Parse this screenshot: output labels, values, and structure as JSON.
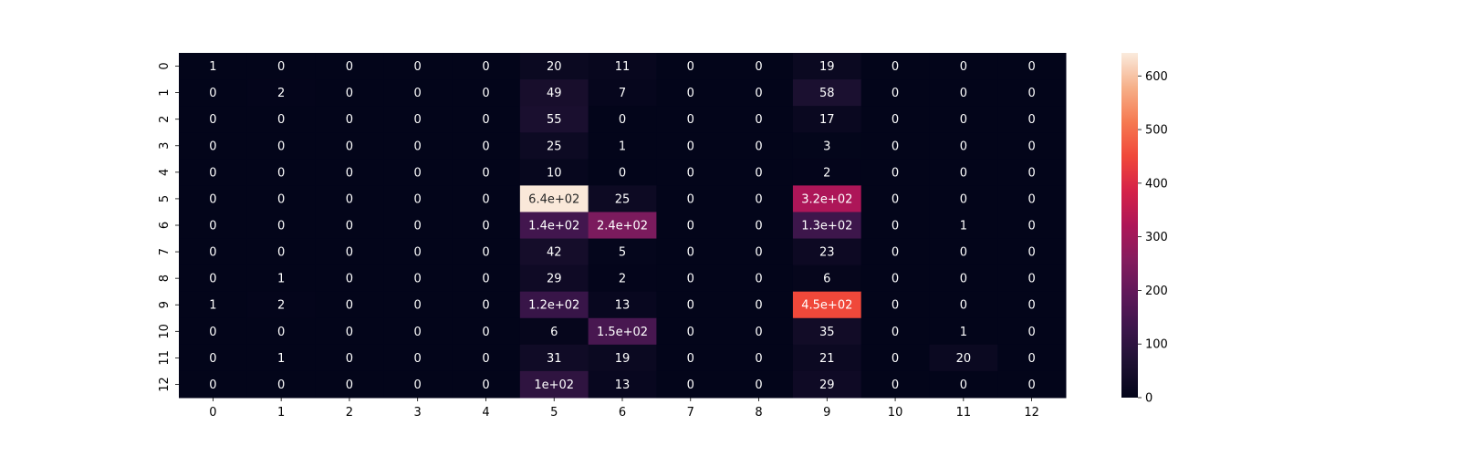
{
  "chart_data": {
    "type": "heatmap",
    "title": "",
    "xlabel": "",
    "ylabel": "",
    "x_ticks": [
      "0",
      "1",
      "2",
      "3",
      "4",
      "5",
      "6",
      "7",
      "8",
      "9",
      "10",
      "11",
      "12"
    ],
    "y_ticks": [
      "0",
      "1",
      "2",
      "3",
      "4",
      "5",
      "6",
      "7",
      "8",
      "9",
      "10",
      "11",
      "12"
    ],
    "values": [
      [
        1,
        0,
        0,
        0,
        0,
        20,
        11,
        0,
        0,
        19,
        0,
        0,
        0
      ],
      [
        0,
        2,
        0,
        0,
        0,
        49,
        7,
        0,
        0,
        58,
        0,
        0,
        0
      ],
      [
        0,
        0,
        0,
        0,
        0,
        55,
        0,
        0,
        0,
        17,
        0,
        0,
        0
      ],
      [
        0,
        0,
        0,
        0,
        0,
        25,
        1,
        0,
        0,
        3,
        0,
        0,
        0
      ],
      [
        0,
        0,
        0,
        0,
        0,
        10,
        0,
        0,
        0,
        2,
        0,
        0,
        0
      ],
      [
        0,
        0,
        0,
        0,
        0,
        640,
        25,
        0,
        0,
        320,
        0,
        0,
        0
      ],
      [
        0,
        0,
        0,
        0,
        0,
        140,
        240,
        0,
        0,
        130,
        0,
        1,
        0
      ],
      [
        0,
        0,
        0,
        0,
        0,
        42,
        5,
        0,
        0,
        23,
        0,
        0,
        0
      ],
      [
        0,
        1,
        0,
        0,
        0,
        29,
        2,
        0,
        0,
        6,
        0,
        0,
        0
      ],
      [
        1,
        2,
        0,
        0,
        0,
        120,
        13,
        0,
        0,
        450,
        0,
        0,
        0
      ],
      [
        0,
        0,
        0,
        0,
        0,
        6,
        150,
        0,
        0,
        35,
        0,
        1,
        0
      ],
      [
        0,
        1,
        0,
        0,
        0,
        31,
        19,
        0,
        0,
        21,
        0,
        20,
        0
      ],
      [
        0,
        0,
        0,
        0,
        0,
        100,
        13,
        0,
        0,
        29,
        0,
        0,
        0
      ]
    ],
    "annotations": [
      [
        "1",
        "0",
        "0",
        "0",
        "0",
        "20",
        "11",
        "0",
        "0",
        "19",
        "0",
        "0",
        "0"
      ],
      [
        "0",
        "2",
        "0",
        "0",
        "0",
        "49",
        "7",
        "0",
        "0",
        "58",
        "0",
        "0",
        "0"
      ],
      [
        "0",
        "0",
        "0",
        "0",
        "0",
        "55",
        "0",
        "0",
        "0",
        "17",
        "0",
        "0",
        "0"
      ],
      [
        "0",
        "0",
        "0",
        "0",
        "0",
        "25",
        "1",
        "0",
        "0",
        "3",
        "0",
        "0",
        "0"
      ],
      [
        "0",
        "0",
        "0",
        "0",
        "0",
        "10",
        "0",
        "0",
        "0",
        "2",
        "0",
        "0",
        "0"
      ],
      [
        "0",
        "0",
        "0",
        "0",
        "0",
        "6.4e+02",
        "25",
        "0",
        "0",
        "3.2e+02",
        "0",
        "0",
        "0"
      ],
      [
        "0",
        "0",
        "0",
        "0",
        "0",
        "1.4e+02",
        "2.4e+02",
        "0",
        "0",
        "1.3e+02",
        "0",
        "1",
        "0"
      ],
      [
        "0",
        "0",
        "0",
        "0",
        "0",
        "42",
        "5",
        "0",
        "0",
        "23",
        "0",
        "0",
        "0"
      ],
      [
        "0",
        "1",
        "0",
        "0",
        "0",
        "29",
        "2",
        "0",
        "0",
        "6",
        "0",
        "0",
        "0"
      ],
      [
        "1",
        "2",
        "0",
        "0",
        "0",
        "1.2e+02",
        "13",
        "0",
        "0",
        "4.5e+02",
        "0",
        "0",
        "0"
      ],
      [
        "0",
        "0",
        "0",
        "0",
        "0",
        "6",
        "1.5e+02",
        "0",
        "0",
        "35",
        "0",
        "1",
        "0"
      ],
      [
        "0",
        "1",
        "0",
        "0",
        "0",
        "31",
        "19",
        "0",
        "0",
        "21",
        "0",
        "20",
        "0"
      ],
      [
        "0",
        "0",
        "0",
        "0",
        "0",
        "1e+02",
        "13",
        "0",
        "0",
        "29",
        "0",
        "0",
        "0"
      ]
    ],
    "colorbar": {
      "min": 0,
      "max": 643,
      "ticks": [
        0,
        100,
        200,
        300,
        400,
        500,
        600
      ],
      "colormap": "rocket"
    },
    "grid": false
  }
}
